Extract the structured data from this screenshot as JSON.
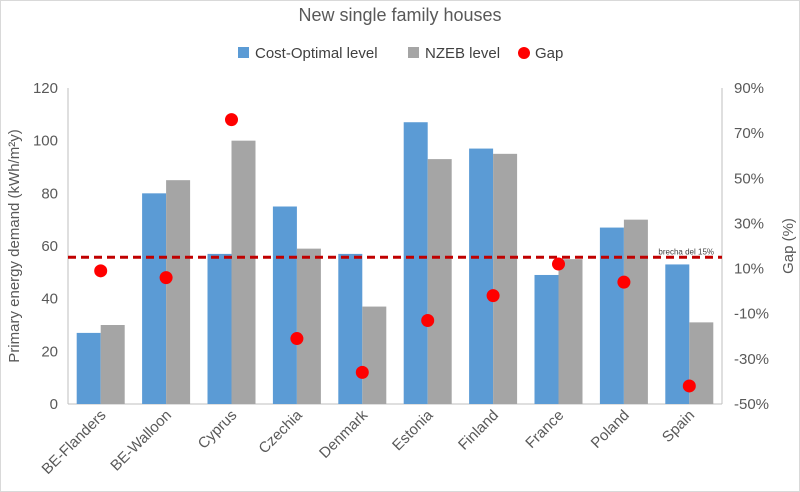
{
  "chart_data": {
    "type": "bar",
    "title": "New single family houses",
    "categories": [
      "BE-Flanders",
      "BE-Walloon",
      "Cyprus",
      "Czechia",
      "Denmark",
      "Estonia",
      "Finland",
      "France",
      "Poland",
      "Spain"
    ],
    "series": [
      {
        "name": "Cost-Optimal level",
        "type": "bar",
        "axis": "left",
        "values": [
          27,
          80,
          57,
          75,
          57,
          107,
          97,
          49,
          67,
          53
        ]
      },
      {
        "name": "NZEB level",
        "type": "bar",
        "axis": "left",
        "values": [
          30,
          85,
          100,
          59,
          37,
          93,
          95,
          55,
          70,
          31
        ]
      },
      {
        "name": "Gap",
        "type": "scatter",
        "axis": "right",
        "values": [
          9,
          6,
          76,
          -21,
          -36,
          -13,
          -2,
          12,
          4,
          -42
        ]
      }
    ],
    "ylabel": "Primary energy demand (kWh/m²y)",
    "y2label": "Gap (%)",
    "ylim": [
      0,
      120
    ],
    "y2lim": [
      -50,
      90
    ],
    "yticks": [
      "0",
      "20",
      "40",
      "60",
      "80",
      "100",
      "120"
    ],
    "y2ticks": [
      "-50%",
      "-30%",
      "-10%",
      "10%",
      "30%",
      "50%",
      "70%",
      "90%"
    ],
    "reference_line": {
      "value": 15,
      "axis": "right",
      "label": "brecha del 15%"
    },
    "legend_position": "top",
    "grid": false,
    "colors": {
      "cost_optimal": "#5B9BD5",
      "nzeb": "#A5A5A5",
      "gap": "#FF0000",
      "reference": "#C00000"
    }
  }
}
